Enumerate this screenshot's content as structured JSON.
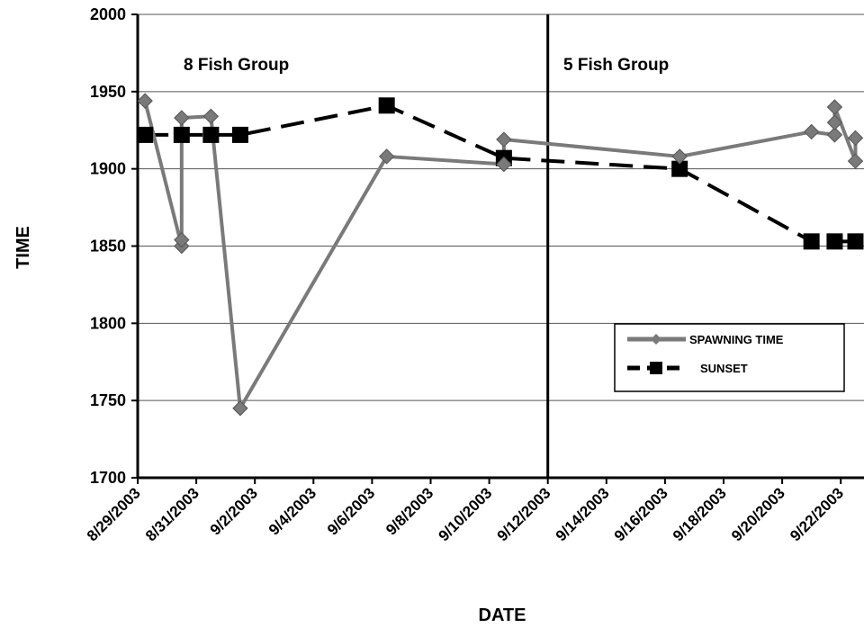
{
  "chart_data": {
    "type": "line",
    "xlabel": "DATE",
    "ylabel": "TIME",
    "ylim": [
      1700,
      2000
    ],
    "yticks": [
      "1700",
      "1750",
      "1800",
      "1850",
      "1900",
      "1950",
      "2000"
    ],
    "xlim": [
      "2003-08-29",
      "2003-09-23"
    ],
    "xticks": [
      "8/29/2003",
      "8/31/2003",
      "9/2/2003",
      "9/4/2003",
      "9/6/2003",
      "9/8/2003",
      "9/10/2003",
      "9/12/2003",
      "9/14/2003",
      "9/16/2003",
      "9/18/2003",
      "9/20/2003",
      "9/22/2003"
    ],
    "grid_y": true,
    "divider_date": "2003-09-12",
    "annotations": [
      "8 Fish Group",
      "5 Fish Group"
    ],
    "legend_position": "lower-right",
    "series": [
      {
        "name": "SPAWNING TIME",
        "color": "#7a7a7a",
        "marker": "diamond",
        "line": "solid",
        "points": [
          [
            "2003-08-29 06:00",
            1944
          ],
          [
            "2003-08-30 12:00",
            1850
          ],
          [
            "2003-08-30 12:00",
            1854
          ],
          [
            "2003-08-30 12:00",
            1933
          ],
          [
            "2003-08-31 12:00",
            1934
          ],
          [
            "2003-09-01 12:00",
            1745
          ],
          [
            "2003-09-06 12:00",
            1908
          ],
          [
            "2003-09-10 12:00",
            1903
          ],
          [
            "2003-09-10 12:00",
            1919
          ],
          [
            "2003-09-16 12:00",
            1908
          ],
          [
            "2003-09-21 00:00",
            1924
          ],
          [
            "2003-09-21 19:00",
            1922
          ],
          [
            "2003-09-21 19:00",
            1930
          ],
          [
            "2003-09-21 19:00",
            1940
          ],
          [
            "2003-09-22 12:00",
            1905
          ],
          [
            "2003-09-22 12:00",
            1920
          ]
        ]
      },
      {
        "name": "SUNSET",
        "color": "#000000",
        "marker": "square",
        "line": "dashed",
        "points": [
          [
            "2003-08-29 06:00",
            1922
          ],
          [
            "2003-08-30 12:00",
            1922
          ],
          [
            "2003-08-31 12:00",
            1922
          ],
          [
            "2003-09-01 12:00",
            1922
          ],
          [
            "2003-09-06 12:00",
            1941
          ],
          [
            "2003-09-10 12:00",
            1907
          ],
          [
            "2003-09-16 12:00",
            1900
          ],
          [
            "2003-09-21 00:00",
            1853
          ],
          [
            "2003-09-21 19:00",
            1853
          ],
          [
            "2003-09-22 12:00",
            1853
          ]
        ]
      }
    ]
  }
}
